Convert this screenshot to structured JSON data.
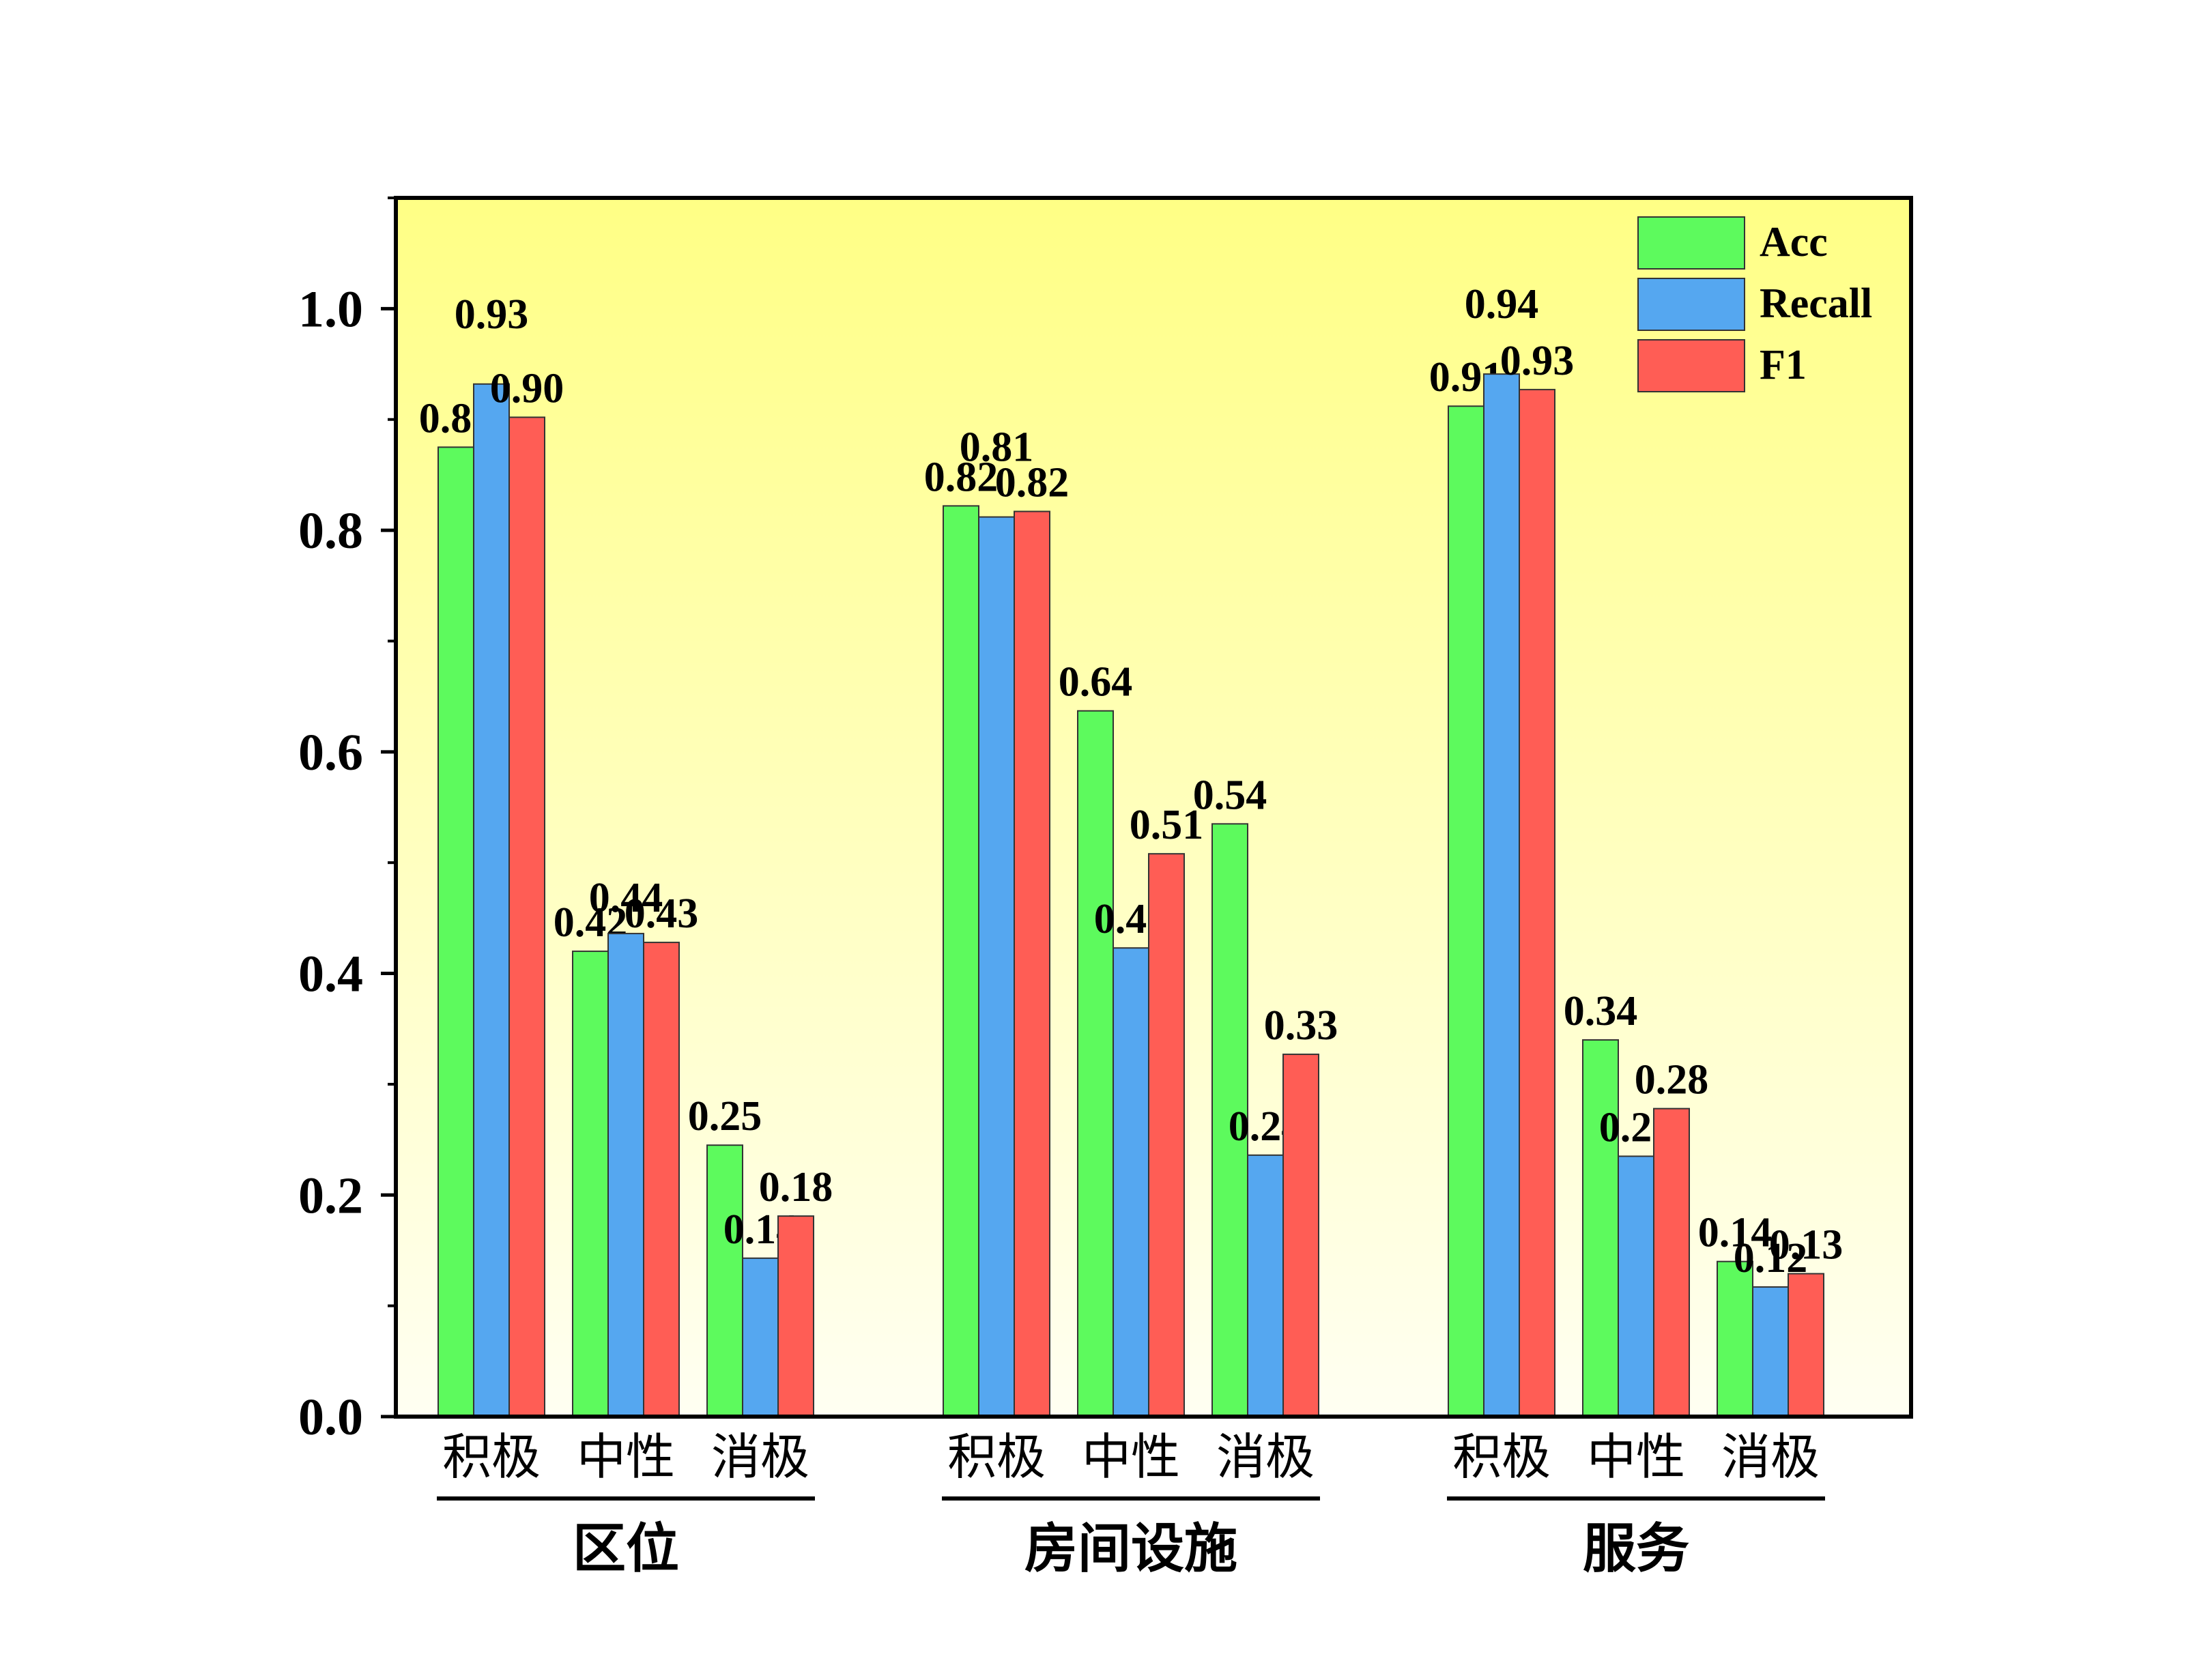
{
  "chart_data": {
    "type": "bar",
    "title": "",
    "xlabel": "",
    "ylabel": "",
    "ylim": [
      0,
      1.1
    ],
    "yticks": [
      "0.0",
      "0.2",
      "0.4",
      "0.6",
      "0.8",
      "1.0"
    ],
    "groups": [
      {
        "name": "区位",
        "categories": [
          "积极",
          "中性",
          "消极"
        ]
      },
      {
        "name": "房间设施",
        "categories": [
          "积极",
          "中性",
          "消极"
        ]
      },
      {
        "name": "服务",
        "categories": [
          "积极",
          "中性",
          "消极"
        ]
      }
    ],
    "series": [
      {
        "name": "Acc",
        "color": "#5dfa5d",
        "values": [
          0.875,
          0.42,
          0.245,
          0.822,
          0.637,
          0.535,
          0.912,
          0.34,
          0.14
        ],
        "labels": [
          "0.88",
          "0.42",
          "0.25",
          "0.82",
          "0.64",
          "0.54",
          "0.91",
          "0.34",
          "0.14"
        ]
      },
      {
        "name": "Recall",
        "color": "#55a7f0",
        "values": [
          0.932,
          0.436,
          0.143,
          0.812,
          0.423,
          0.236,
          0.941,
          0.235,
          0.117
        ],
        "labels": [
          "0.93",
          "0.44",
          "0.14",
          "0.81",
          "0.42",
          "0.24",
          "0.94",
          "0.23",
          "0.12"
        ]
      },
      {
        "name": "F1",
        "color": "#ff5d55",
        "values": [
          0.902,
          0.428,
          0.181,
          0.817,
          0.508,
          0.327,
          0.927,
          0.278,
          0.129
        ],
        "labels": [
          "0.90",
          "0.43",
          "0.18",
          "0.82",
          "0.51",
          "0.33",
          "0.93",
          "0.28",
          "0.13"
        ]
      }
    ],
    "legend": {
      "position": "top-right"
    },
    "background_gradient": [
      "#ffff85",
      "#fffff2"
    ]
  }
}
